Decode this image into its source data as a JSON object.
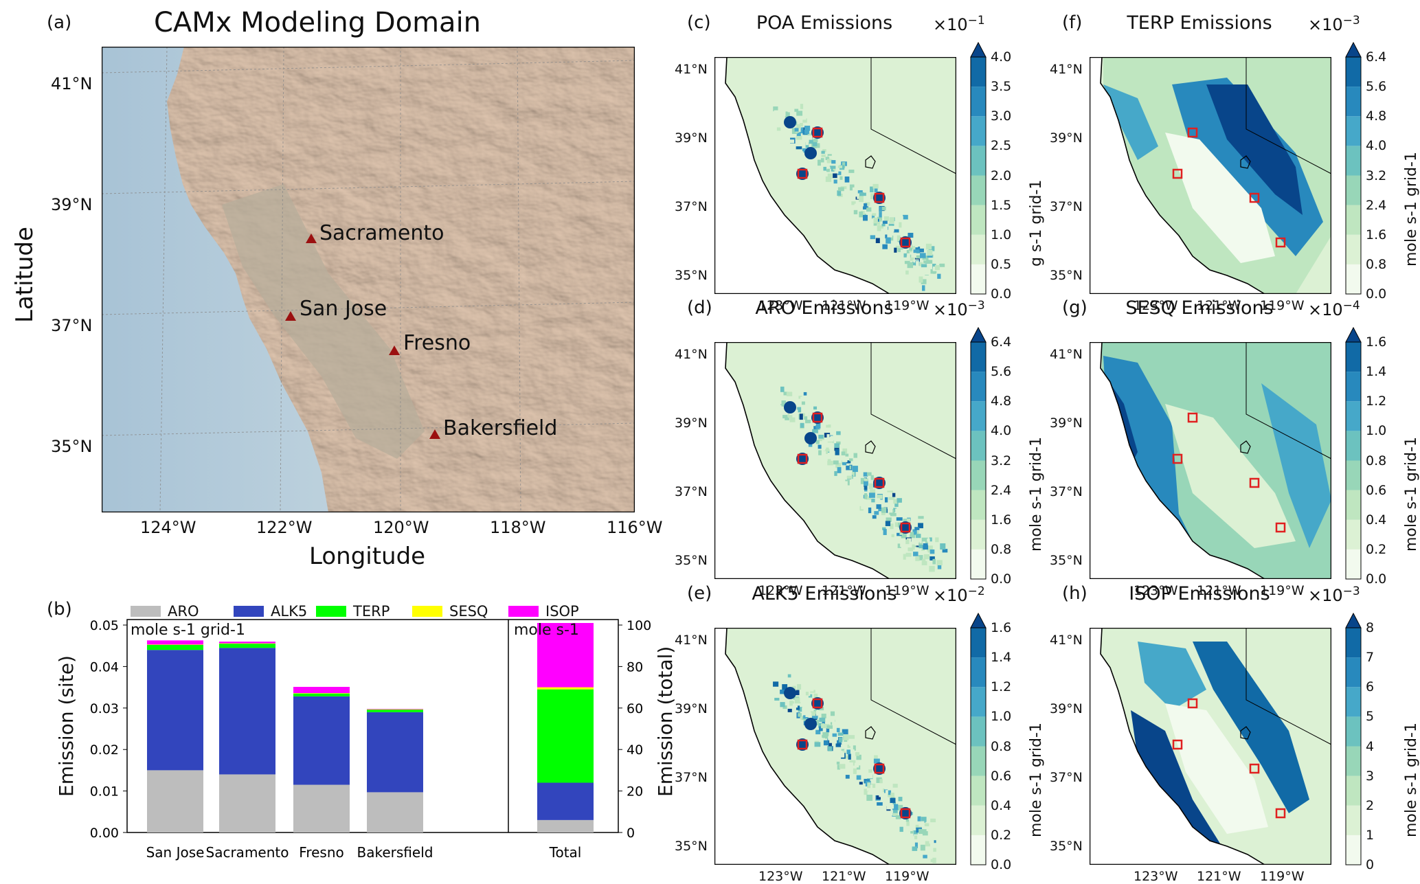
{
  "panel_a": {
    "label": "(a)",
    "title": "CAMx Modeling Domain",
    "xlabel": "Longitude",
    "ylabel": "Latitude",
    "lat_ticks": [
      "41°N",
      "39°N",
      "37°N",
      "35°N"
    ],
    "lon_ticks": [
      "124°W",
      "122°W",
      "120°W",
      "118°W",
      "116°W"
    ],
    "cities": [
      {
        "name": "Sacramento",
        "lon": -121.49,
        "lat": 38.58
      },
      {
        "name": "San Jose",
        "lon": -121.89,
        "lat": 37.34
      },
      {
        "name": "Fresno",
        "lon": -119.79,
        "lat": 36.74
      },
      {
        "name": "Bakersfield",
        "lon": -119.02,
        "lat": 35.37
      }
    ],
    "marker_color": "#9b1010"
  },
  "chart_data": {
    "type": "bar",
    "label": "(b)",
    "stacked": true,
    "categories": [
      "San Jose",
      "Sacramento",
      "Fresno",
      "Bakersfield",
      "Total"
    ],
    "series": [
      {
        "name": "ARO",
        "color": "#bdbdbd",
        "values": [
          0.015,
          0.014,
          0.0115,
          0.0097,
          6
        ]
      },
      {
        "name": "ALK5",
        "color": "#3245bd",
        "values": [
          0.029,
          0.0305,
          0.0213,
          0.0193,
          18
        ]
      },
      {
        "name": "TERP",
        "color": "#00ff00",
        "values": [
          0.0012,
          0.001,
          0.0007,
          0.0006,
          45
        ]
      },
      {
        "name": "SESQ",
        "color": "#ffff00",
        "values": [
          0.0001,
          0.0001,
          0.0001,
          0.0001,
          1
        ]
      },
      {
        "name": "ISOP",
        "color": "#ff00ff",
        "values": [
          0.001,
          0.0004,
          0.0015,
          0.0001,
          31
        ]
      }
    ],
    "ylabel_left": "Emission (site)",
    "ylabel_right": "Emission (total)",
    "ylim_left": [
      0,
      0.05
    ],
    "ylim_right": [
      0,
      100
    ],
    "yticks_left": [
      "0.00",
      "0.01",
      "0.02",
      "0.03",
      "0.04",
      "0.05"
    ],
    "yticks_right": [
      "0",
      "20",
      "40",
      "60",
      "80",
      "100"
    ],
    "unit_site": "mole s-1 grid-1",
    "unit_total": "mole s-1",
    "legend_placement": "top"
  },
  "maps": [
    {
      "label": "(c)",
      "title": "POA Emissions",
      "mag_base": "×10",
      "mag_exp": "−1",
      "unit": "g s-1 grid-1",
      "ticks": [
        "0.0",
        "0.5",
        "1.0",
        "1.5",
        "2.0",
        "2.5",
        "3.0",
        "3.5",
        "4.0"
      ],
      "pattern": "urban"
    },
    {
      "label": "(d)",
      "title": "ARO Emissions",
      "mag_base": "×10",
      "mag_exp": "−3",
      "unit": "mole s-1 grid-1",
      "ticks": [
        "0.0",
        "0.8",
        "1.6",
        "2.4",
        "3.2",
        "4.0",
        "4.8",
        "5.6",
        "6.4"
      ],
      "pattern": "urban"
    },
    {
      "label": "(e)",
      "title": "ALK5 Emissions",
      "mag_base": "×10",
      "mag_exp": "−2",
      "unit": "mole s-1 grid-1",
      "ticks": [
        "0.0",
        "0.2",
        "0.4",
        "0.6",
        "0.8",
        "1.0",
        "1.2",
        "1.4",
        "1.6"
      ],
      "pattern": "urban"
    },
    {
      "label": "(f)",
      "title": "TERP Emissions",
      "mag_base": "×10",
      "mag_exp": "−3",
      "unit": "mole s-1 grid-1",
      "ticks": [
        "0.0",
        "0.8",
        "1.6",
        "2.4",
        "3.2",
        "4.0",
        "4.8",
        "5.6",
        "6.4"
      ],
      "pattern": "biogenic"
    },
    {
      "label": "(g)",
      "title": "SESQ Emissions",
      "mag_base": "×10",
      "mag_exp": "−4",
      "unit": "mole s-1 grid-1",
      "ticks": [
        "0.0",
        "0.2",
        "0.4",
        "0.6",
        "0.8",
        "1.0",
        "1.2",
        "1.4",
        "1.6"
      ],
      "pattern": "coastal"
    },
    {
      "label": "(h)",
      "title": "ISOP Emissions",
      "mag_base": "×10",
      "mag_exp": "−3",
      "unit": "mole s-1 grid-1",
      "ticks": [
        "0",
        "1",
        "2",
        "3",
        "4",
        "5",
        "6",
        "7",
        "8"
      ],
      "pattern": "foothill"
    }
  ],
  "map_lat_ticks": [
    "41°N",
    "39°N",
    "37°N",
    "35°N"
  ],
  "map_lon_ticks": [
    "123°W",
    "121°W",
    "119°W"
  ],
  "site_marker_color": "#e02020",
  "colormap": [
    "#f2faee",
    "#dcf1d4",
    "#bfe6c0",
    "#98d6b8",
    "#6cc2bf",
    "#46a8c9",
    "#2889bd",
    "#116aa6",
    "#08458a"
  ]
}
